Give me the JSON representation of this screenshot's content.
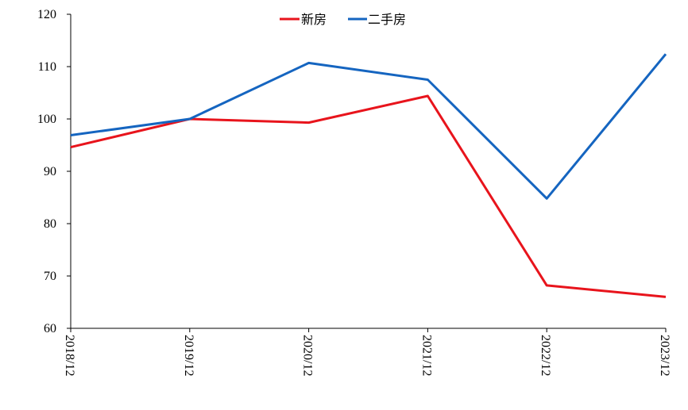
{
  "chart_data": {
    "type": "line",
    "categories": [
      "2018/12",
      "2019/12",
      "2020/12",
      "2021/12",
      "2022/12",
      "2023/12"
    ],
    "series": [
      {
        "name": "新房",
        "values": [
          94.6,
          100.0,
          99.3,
          104.4,
          68.2,
          66.0
        ],
        "color": "#e8141c"
      },
      {
        "name": "二手房",
        "values": [
          96.9,
          100.0,
          110.7,
          107.5,
          84.8,
          112.4
        ],
        "color": "#1565c0"
      }
    ],
    "ylim": [
      60,
      120
    ],
    "yticks": [
      60,
      70,
      80,
      90,
      100,
      110,
      120
    ],
    "grid": false,
    "legend_position": "top-center",
    "title": "",
    "xlabel": "",
    "ylabel": ""
  }
}
